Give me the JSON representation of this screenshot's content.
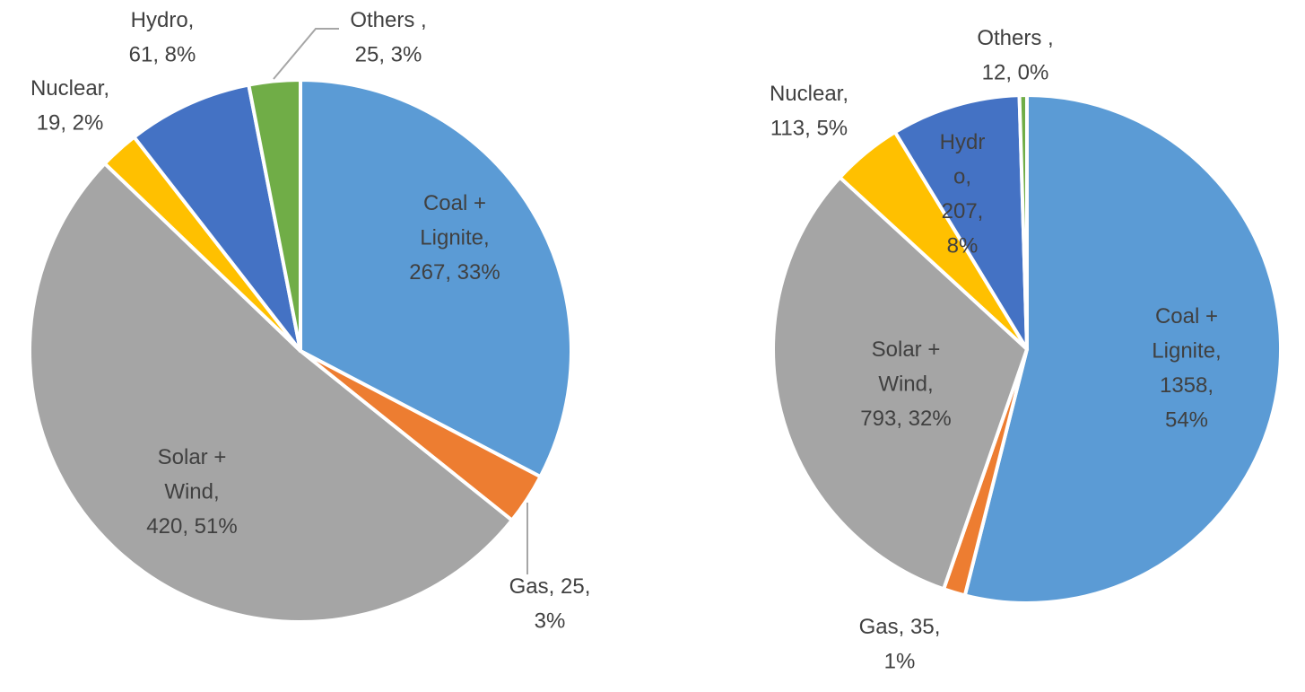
{
  "chart_data": [
    {
      "type": "pie",
      "title": "",
      "start_angle_deg": 0,
      "direction": "clockwise",
      "slices": [
        {
          "name": "Coal + Lignite",
          "value": 267,
          "percent": "33%",
          "color": "#5B9BD5",
          "label_lines": [
            "Coal +",
            "Lignite,",
            "267, 33%"
          ]
        },
        {
          "name": "Gas",
          "value": 25,
          "percent": "3%",
          "color": "#ED7D31",
          "label_lines": [
            "Gas, 25,",
            "3%"
          ]
        },
        {
          "name": "Solar + Wind",
          "value": 420,
          "percent": "51%",
          "color": "#A5A5A5",
          "label_lines": [
            "Solar +",
            "Wind,",
            "420, 51%"
          ]
        },
        {
          "name": "Nuclear",
          "value": 19,
          "percent": "2%",
          "color": "#FFC000",
          "label_lines": [
            "Nuclear,",
            "19, 2%"
          ]
        },
        {
          "name": "Hydro",
          "value": 61,
          "percent": "8%",
          "color": "#4472C4",
          "label_lines": [
            "Hydro,",
            "61, 8%"
          ]
        },
        {
          "name": "Others",
          "value": 25,
          "percent": "3%",
          "color": "#70AD47",
          "label_lines": [
            "Others ,",
            "25, 3%"
          ]
        }
      ]
    },
    {
      "type": "pie",
      "title": "",
      "start_angle_deg": 0,
      "direction": "clockwise",
      "slices": [
        {
          "name": "Coal + Lignite",
          "value": 1358,
          "percent": "54%",
          "color": "#5B9BD5",
          "label_lines": [
            "Coal +",
            "Lignite,",
            "1358,",
            "54%"
          ]
        },
        {
          "name": "Gas",
          "value": 35,
          "percent": "1%",
          "color": "#ED7D31",
          "label_lines": [
            "Gas, 35,",
            "1%"
          ]
        },
        {
          "name": "Solar + Wind",
          "value": 793,
          "percent": "32%",
          "color": "#A5A5A5",
          "label_lines": [
            "Solar +",
            "Wind,",
            "793, 32%"
          ]
        },
        {
          "name": "Nuclear",
          "value": 113,
          "percent": "5%",
          "color": "#FFC000",
          "label_lines": [
            "Nuclear,",
            "113, 5%"
          ]
        },
        {
          "name": "Hydro",
          "value": 207,
          "percent": "8%",
          "color": "#4472C4",
          "label_lines": [
            "Hydr",
            "o,",
            "207,",
            "8%"
          ]
        },
        {
          "name": "Others",
          "value": 12,
          "percent": "0%",
          "color": "#70AD47",
          "label_lines": [
            "Others ,",
            "12, 0%"
          ]
        }
      ]
    }
  ]
}
